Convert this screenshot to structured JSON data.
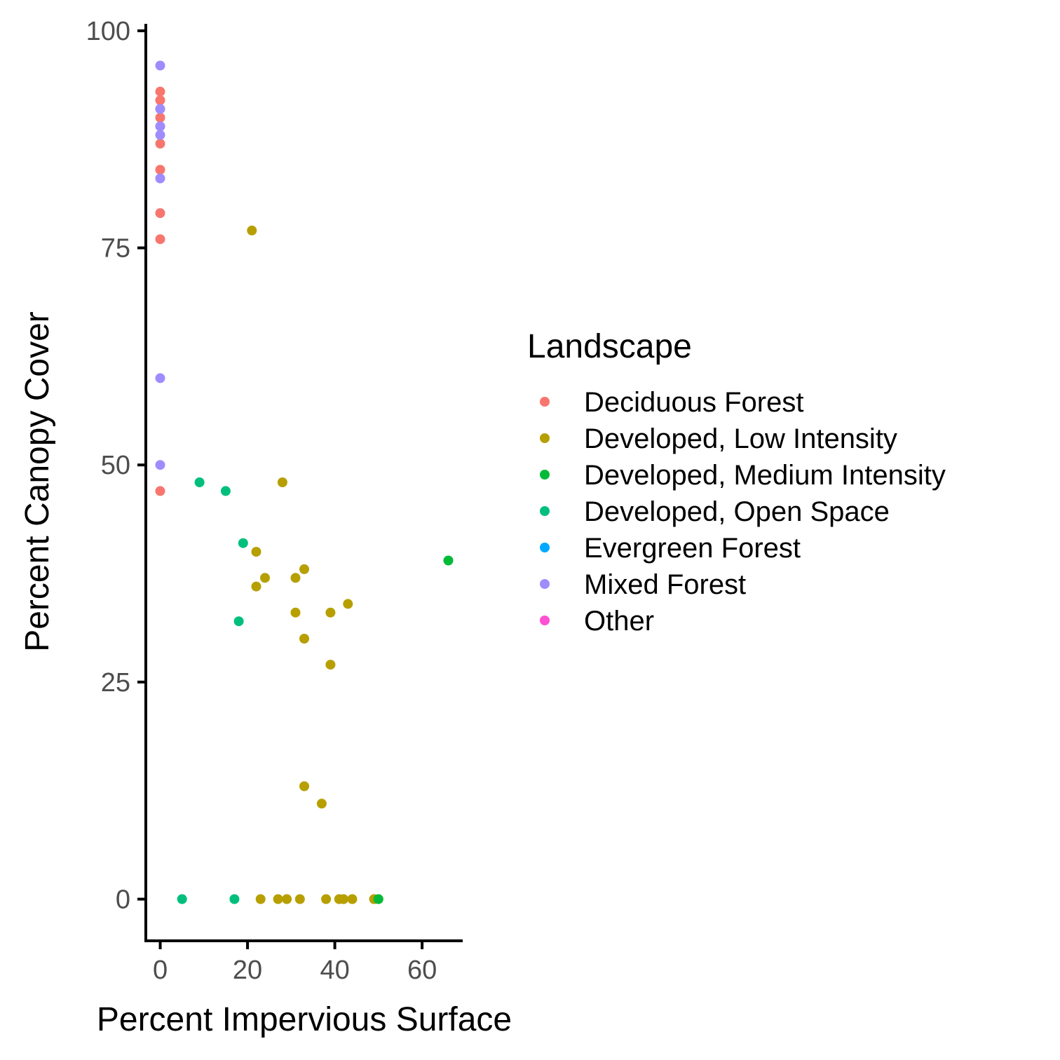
{
  "chart_data": {
    "type": "scatter",
    "title": "",
    "xlabel": "Percent Impervious Surface",
    "ylabel": "Percent Canopy Cover",
    "xlim": [
      -3.3,
      69.3
    ],
    "ylim": [
      -4.8,
      100.8
    ],
    "x_ticks": [
      0,
      20,
      40,
      60
    ],
    "y_ticks": [
      0,
      25,
      50,
      75,
      100
    ],
    "grid": false,
    "legend": {
      "title": "Landscape",
      "position": "right"
    },
    "series": [
      {
        "name": "Deciduous Forest",
        "color": "#F8766D",
        "points": [
          [
            0,
            93
          ],
          [
            0,
            92
          ],
          [
            0,
            91
          ],
          [
            0,
            90
          ],
          [
            0,
            89
          ],
          [
            0,
            87
          ],
          [
            0,
            84
          ],
          [
            0,
            79
          ],
          [
            0,
            76
          ],
          [
            0,
            47
          ]
        ]
      },
      {
        "name": "Developed, Low Intensity",
        "color": "#B79F00",
        "points": [
          [
            21,
            77
          ],
          [
            28,
            48
          ],
          [
            22,
            40
          ],
          [
            33,
            38
          ],
          [
            24,
            37
          ],
          [
            31,
            37
          ],
          [
            22,
            36
          ],
          [
            43,
            34
          ],
          [
            31,
            33
          ],
          [
            39,
            33
          ],
          [
            33,
            30
          ],
          [
            39,
            27
          ],
          [
            33,
            13
          ],
          [
            37,
            11
          ],
          [
            23,
            0
          ],
          [
            27,
            0
          ],
          [
            29,
            0
          ],
          [
            32,
            0
          ],
          [
            38,
            0
          ],
          [
            41,
            0
          ],
          [
            42,
            0
          ],
          [
            44,
            0
          ],
          [
            49,
            0
          ]
        ]
      },
      {
        "name": "Developed, Medium Intensity",
        "color": "#00BA38",
        "points": [
          [
            66,
            39
          ],
          [
            50,
            0
          ]
        ]
      },
      {
        "name": "Developed, Open Space",
        "color": "#00BF7D",
        "points": [
          [
            9,
            48
          ],
          [
            15,
            47
          ],
          [
            19,
            41
          ],
          [
            18,
            32
          ],
          [
            5,
            0
          ],
          [
            17,
            0
          ]
        ]
      },
      {
        "name": "Evergreen Forest",
        "color": "#00A9FF",
        "points": []
      },
      {
        "name": "Mixed Forest",
        "color": "#9F8CFF",
        "points": [
          [
            0,
            96
          ],
          [
            0,
            91
          ],
          [
            0,
            89
          ],
          [
            0,
            88
          ],
          [
            0,
            83
          ],
          [
            0,
            60
          ],
          [
            0,
            50
          ]
        ]
      },
      {
        "name": "Other",
        "color": "#FF4FD4",
        "points": []
      }
    ]
  }
}
